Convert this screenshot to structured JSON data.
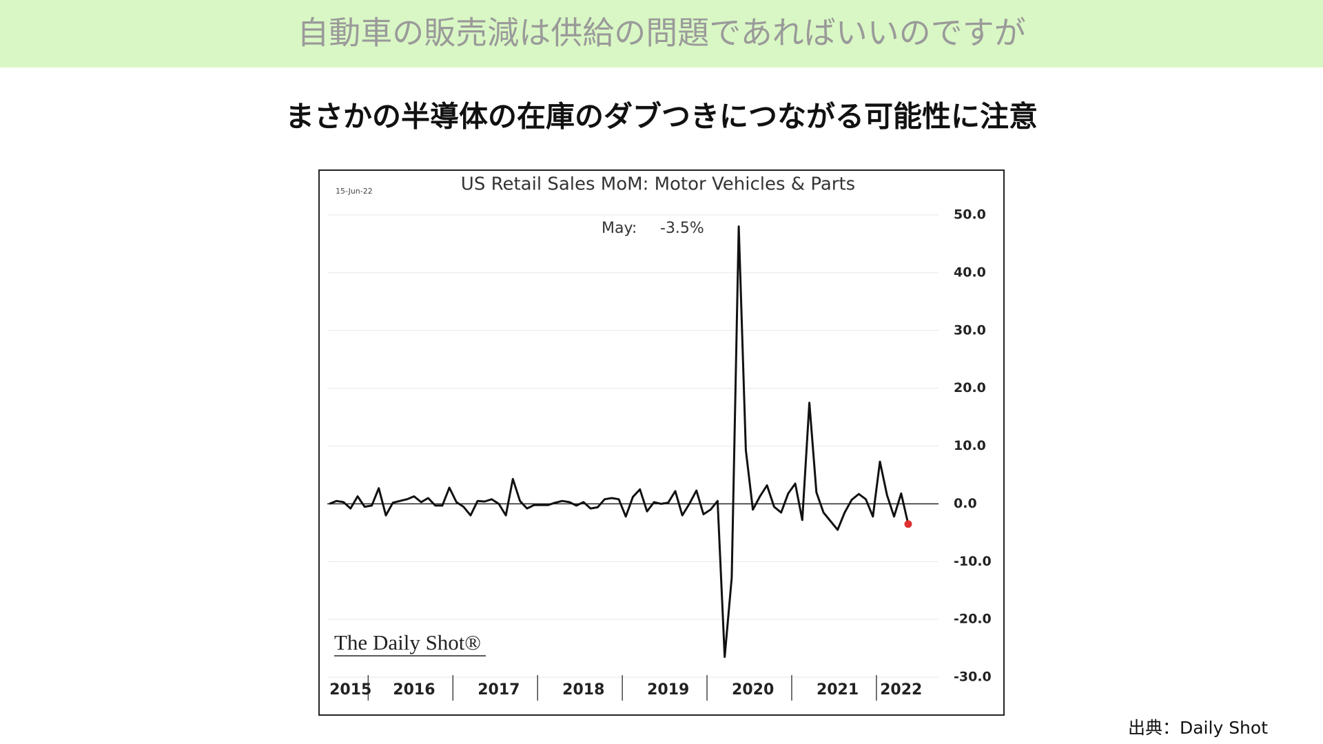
{
  "header": {
    "title": "自動車の販売減は供給の問題であればいいのですが",
    "subtitle": "まさかの半導体の在庫のダブつきにつながる可能性に注意",
    "source": "出典：Daily Shot"
  },
  "chart_data": {
    "type": "line",
    "title": "US Retail Sales MoM: Motor Vehicles & Parts",
    "date": "15-Jun-22",
    "annotations": [
      "May:",
      "-3.5%"
    ],
    "watermark": "The Daily Shot®",
    "categories": [
      null,
      null,
      null,
      "2015",
      null,
      null,
      null,
      null,
      null,
      null,
      null,
      null,
      "2016",
      null,
      null,
      null,
      null,
      null,
      null,
      null,
      null,
      null,
      null,
      null,
      "2017",
      null,
      null,
      null,
      null,
      null,
      null,
      null,
      null,
      null,
      null,
      null,
      "2018",
      null,
      null,
      null,
      null,
      null,
      null,
      null,
      null,
      null,
      null,
      null,
      "2019",
      null,
      null,
      null,
      null,
      null,
      null,
      null,
      null,
      null,
      null,
      null,
      "2020",
      null,
      null,
      null,
      null,
      null,
      null,
      null,
      null,
      null,
      null,
      null,
      "2021",
      null,
      null,
      null,
      null,
      null,
      null,
      null,
      null,
      "2022",
      null
    ],
    "series": [
      {
        "name": "Motor Vehicles & Parts",
        "color": "#111111",
        "values": [
          0,
          0.5,
          0.3,
          -0.8,
          1.3,
          -0.5,
          -0.3,
          2.7,
          -2.0,
          0.2,
          0.5,
          0.8,
          1.3,
          0.3,
          1.0,
          -0.3,
          -0.3,
          2.8,
          0.3,
          -0.5,
          -2.0,
          0.5,
          0.4,
          0.8,
          0.0,
          -2.0,
          4.3,
          0.5,
          -0.8,
          -0.2,
          -0.2,
          -0.2,
          0.2,
          0.5,
          0.3,
          -0.3,
          0.3,
          -0.8,
          -0.6,
          0.8,
          1.0,
          0.8,
          -2.2,
          1.2,
          2.5,
          -1.3,
          0.3,
          0.0,
          0.2,
          2.2,
          -2.0,
          0.0,
          2.3,
          -1.8,
          -1.0,
          0.5,
          -26.5,
          -12.8,
          48.0,
          9.3,
          -1.0,
          1.3,
          3.2,
          -0.5,
          -1.5,
          1.8,
          3.5,
          -2.8,
          17.5,
          2.0,
          -1.5,
          -3.0,
          -4.5,
          -1.5,
          0.7,
          1.7,
          0.8,
          -2.2,
          7.3,
          1.5,
          -2.2,
          1.8,
          -3.5
        ]
      }
    ],
    "highlight_color": "#e03030",
    "ylim": [
      -30,
      50
    ],
    "yticks": [
      {
        "value": 50,
        "label": "50.0"
      },
      {
        "value": 40,
        "label": "40.0"
      },
      {
        "value": 30,
        "label": "30.0"
      },
      {
        "value": 20,
        "label": "20.0"
      },
      {
        "value": 10,
        "label": "10.0"
      },
      {
        "value": 0,
        "label": "0.0"
      },
      {
        "value": -10,
        "label": "-10.0"
      },
      {
        "value": -20,
        "label": "-20.0"
      },
      {
        "value": -30,
        "label": "-30.0"
      }
    ],
    "grid": true
  }
}
